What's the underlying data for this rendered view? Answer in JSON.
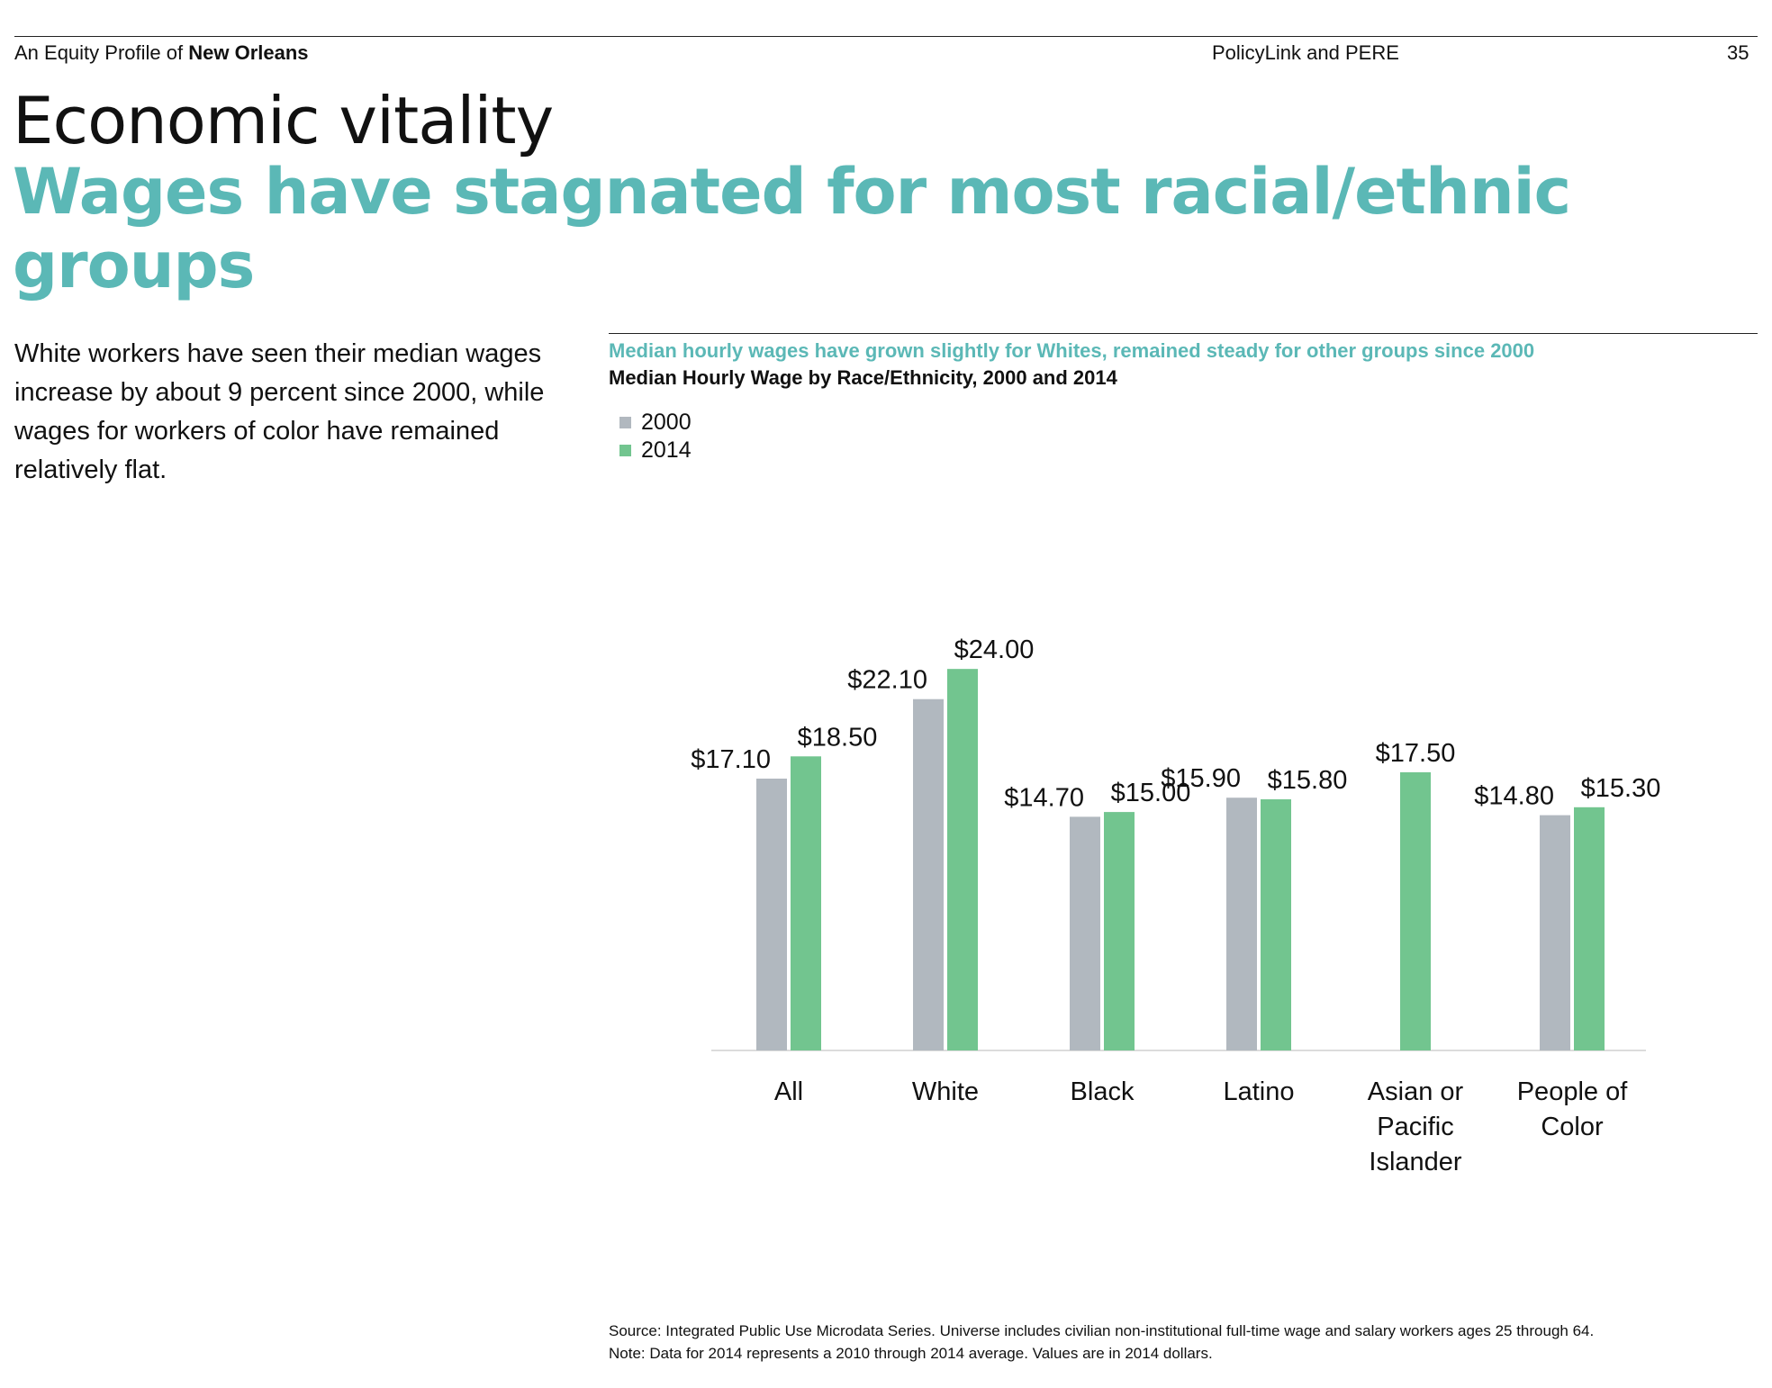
{
  "header": {
    "left_prefix": "An Equity Profile of",
    "left_bold": "New Orleans",
    "center": "PolicyLink and PERE",
    "page_number": "35"
  },
  "section_title": "Economic vitality",
  "headline": "Wages have stagnated for most racial/ethnic groups",
  "body_text": "White workers have seen their median wages increase by about 9 percent since 2000, while wages for workers of color have remained relatively flat.",
  "colors": {
    "accent": "#5bb8b6",
    "series_2000": "#b1b8bf",
    "series_2014": "#72c58f"
  },
  "chart_data": {
    "type": "bar",
    "title": "Median hourly wages have grown slightly for Whites, remained steady for other groups since 2000",
    "subtitle": "Median Hourly Wage by Race/Ethnicity, 2000 and 2014",
    "categories": [
      [
        "All"
      ],
      [
        "White"
      ],
      [
        "Black"
      ],
      [
        "Latino"
      ],
      [
        "Asian or",
        "Pacific",
        "Islander"
      ],
      [
        "People of",
        "Color"
      ]
    ],
    "series": [
      {
        "name": "2000",
        "color": "#b1b8bf",
        "values": [
          17.1,
          22.1,
          14.7,
          15.9,
          null,
          14.8
        ],
        "labels": [
          "$17.10",
          "$22.10",
          "$14.70",
          "$15.90",
          "",
          "$14.80"
        ]
      },
      {
        "name": "2014",
        "color": "#72c58f",
        "values": [
          18.5,
          24.0,
          15.0,
          15.8,
          17.5,
          15.3
        ],
        "labels": [
          "$18.50",
          "$24.00",
          "$15.00",
          "$15.80",
          "$17.50",
          "$15.30"
        ]
      }
    ],
    "ylim": [
      0,
      24
    ],
    "grid": false,
    "legend_position": "top-left"
  },
  "footnote": {
    "source": "Source: Integrated Public Use Microdata Series. Universe includes civilian non-institutional full-time wage and salary workers ages 25 through 64.",
    "note": "Note: Data for 2014 represents a 2010 through 2014 average. Values are in 2014 dollars."
  }
}
